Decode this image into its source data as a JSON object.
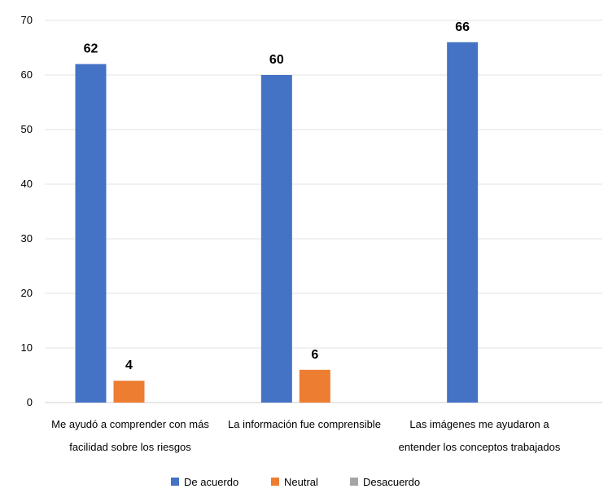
{
  "chart_data": {
    "type": "bar",
    "title": "",
    "xlabel": "",
    "ylabel": "",
    "ylim": [
      0,
      70
    ],
    "yticks": [
      0,
      10,
      20,
      30,
      40,
      50,
      60,
      70
    ],
    "grid": true,
    "legend_position": "bottom",
    "categories": [
      [
        "Me ayudó a comprender con más",
        "facilidad sobre los riesgos"
      ],
      [
        "La información fue comprensible"
      ],
      [
        "Las imágenes me ayudaron a",
        "entender los conceptos trabajados"
      ]
    ],
    "series": [
      {
        "name": "De acuerdo",
        "color": "#4472C4",
        "values": [
          62,
          60,
          66
        ]
      },
      {
        "name": "Neutral",
        "color": "#ED7D31",
        "values": [
          4,
          6,
          null
        ]
      },
      {
        "name": "Desacuerdo",
        "color": "#A5A5A5",
        "values": [
          null,
          null,
          null
        ]
      }
    ]
  }
}
